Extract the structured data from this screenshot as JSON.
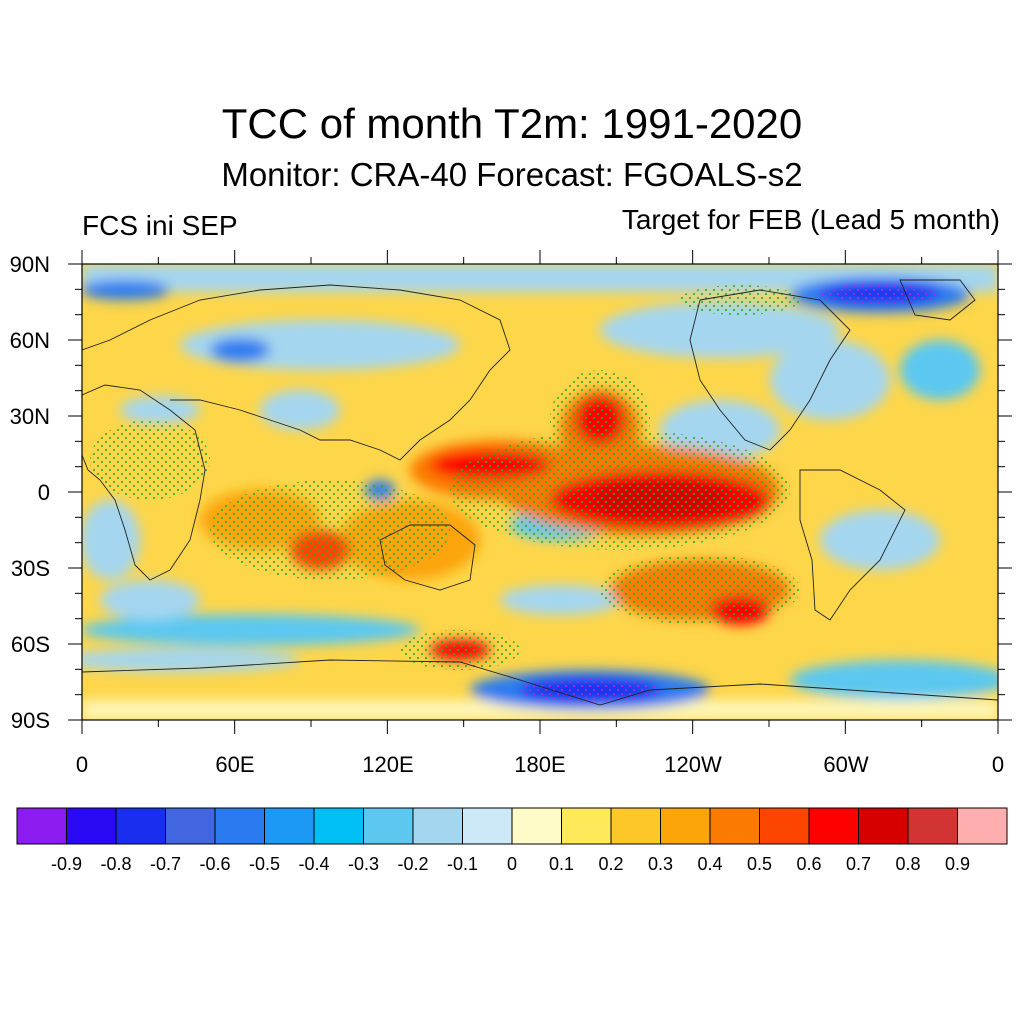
{
  "title": "TCC of month T2m: 1991-2020",
  "subtitle": "Monitor: CRA-40   Forecast: FGOALS-s2",
  "left_string": "FCS ini SEP",
  "right_string": "Target for FEB (Lead 5 month)",
  "lat_labels": [
    "90N",
    "60N",
    "30N",
    "0",
    "30S",
    "60S",
    "90S"
  ],
  "lon_labels": [
    "0",
    "60E",
    "120E",
    "180E",
    "120W",
    "60W",
    "0"
  ],
  "colorbar": {
    "colors": [
      "#8a1cf0",
      "#2a0af5",
      "#1a2ef0",
      "#4166e0",
      "#2b7bf0",
      "#1c99f5",
      "#00bff5",
      "#5cc8f0",
      "#a4d6ef",
      "#cde9f8",
      "#fefbc8",
      "#fde95a",
      "#fdc72a",
      "#fca50b",
      "#fb7a00",
      "#fb4500",
      "#fc0000",
      "#d60000",
      "#d23333",
      "#feaeae"
    ],
    "labels": [
      "-0.9",
      "-0.8",
      "-0.7",
      "-0.6",
      "-0.5",
      "-0.4",
      "-0.3",
      "-0.2",
      "-0.1",
      "0",
      "0.1",
      "0.2",
      "0.3",
      "0.4",
      "0.5",
      "0.6",
      "0.7",
      "0.8",
      "0.9"
    ]
  }
}
